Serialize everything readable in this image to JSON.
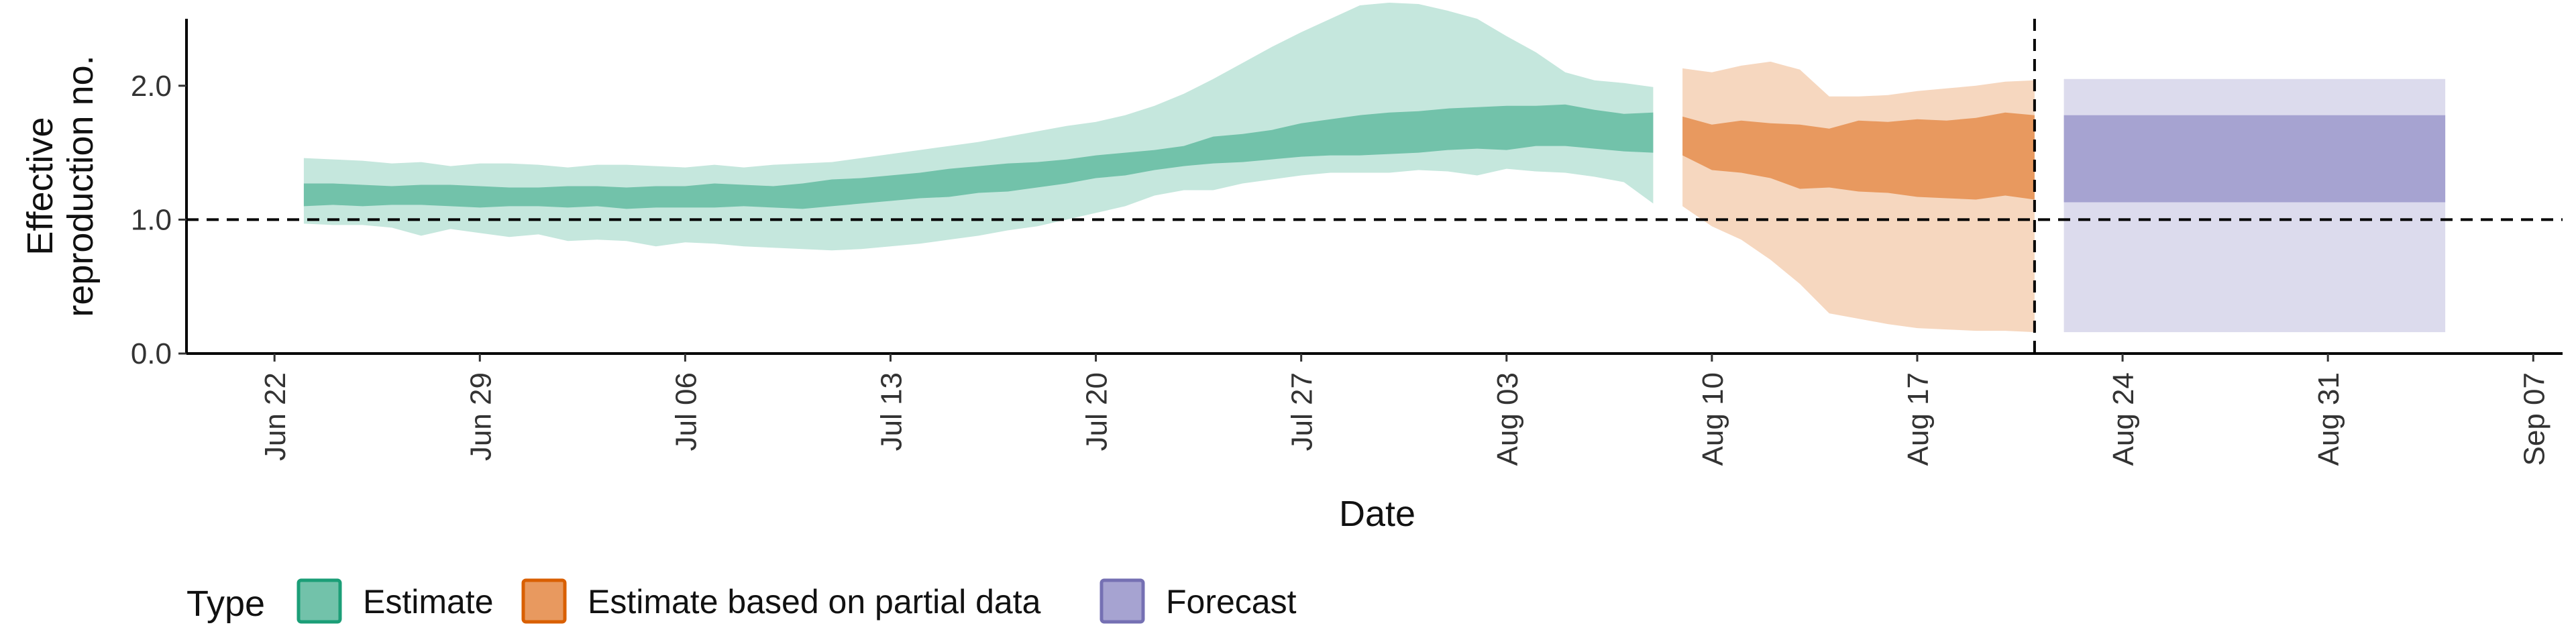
{
  "chart_data": {
    "type": "area",
    "xlabel": "Date",
    "ylabel": "Effective reproduction no.",
    "ylim": [
      0,
      2.5
    ],
    "xlim": [
      "2020-06-19",
      "2020-09-08"
    ],
    "x_ticks": [
      "Jun 22",
      "Jun 29",
      "Jul 06",
      "Jul 13",
      "Jul 20",
      "Jul 27",
      "Aug 03",
      "Aug 10",
      "Aug 17",
      "Aug 24",
      "Aug 31",
      "Sep 07"
    ],
    "x_tick_dates": [
      "2020-06-22",
      "2020-06-29",
      "2020-07-06",
      "2020-07-13",
      "2020-07-20",
      "2020-07-27",
      "2020-08-03",
      "2020-08-10",
      "2020-08-17",
      "2020-08-24",
      "2020-08-31",
      "2020-09-07"
    ],
    "y_ticks": [
      "0.0",
      "1.0",
      "2.0"
    ],
    "y_tick_values": [
      0,
      1,
      2
    ],
    "reference_lines": {
      "horizontal_y": 1.0,
      "vertical_date": "2020-08-21",
      "style": "dashed"
    },
    "grid": false,
    "legend": {
      "title": "Type",
      "position": "bottom",
      "items": [
        {
          "label": "Estimate",
          "fill": "#72c2aa",
          "border": "#1b9e77"
        },
        {
          "label": "Estimate based on partial data",
          "fill": "#e8995f",
          "border": "#d95f02"
        },
        {
          "label": "Forecast",
          "fill": "#a6a3d1",
          "border": "#7570b3"
        }
      ]
    },
    "series": [
      {
        "name": "Estimate",
        "color": "#1b9e77",
        "x": [
          "2020-06-23",
          "2020-06-24",
          "2020-06-25",
          "2020-06-26",
          "2020-06-27",
          "2020-06-28",
          "2020-06-29",
          "2020-06-30",
          "2020-07-01",
          "2020-07-02",
          "2020-07-03",
          "2020-07-04",
          "2020-07-05",
          "2020-07-06",
          "2020-07-07",
          "2020-07-08",
          "2020-07-09",
          "2020-07-10",
          "2020-07-11",
          "2020-07-12",
          "2020-07-13",
          "2020-07-14",
          "2020-07-15",
          "2020-07-16",
          "2020-07-17",
          "2020-07-18",
          "2020-07-19",
          "2020-07-20",
          "2020-07-21",
          "2020-07-22",
          "2020-07-23",
          "2020-07-24",
          "2020-07-25",
          "2020-07-26",
          "2020-07-27",
          "2020-07-28",
          "2020-07-29",
          "2020-07-30",
          "2020-07-31",
          "2020-08-01",
          "2020-08-02",
          "2020-08-03",
          "2020-08-04",
          "2020-08-05",
          "2020-08-06",
          "2020-08-07",
          "2020-08-08"
        ],
        "lower_90": [
          0.97,
          0.96,
          0.96,
          0.94,
          0.88,
          0.93,
          0.9,
          0.87,
          0.89,
          0.84,
          0.85,
          0.84,
          0.8,
          0.83,
          0.82,
          0.8,
          0.79,
          0.78,
          0.77,
          0.78,
          0.8,
          0.82,
          0.85,
          0.88,
          0.92,
          0.95,
          1.0,
          1.05,
          1.1,
          1.18,
          1.22,
          1.22,
          1.27,
          1.3,
          1.33,
          1.35,
          1.35,
          1.35,
          1.37,
          1.36,
          1.33,
          1.38,
          1.36,
          1.35,
          1.32,
          1.28,
          1.12
        ],
        "lower_50": [
          1.1,
          1.11,
          1.1,
          1.11,
          1.11,
          1.1,
          1.09,
          1.1,
          1.1,
          1.09,
          1.1,
          1.08,
          1.09,
          1.09,
          1.09,
          1.1,
          1.09,
          1.08,
          1.1,
          1.12,
          1.14,
          1.16,
          1.17,
          1.2,
          1.21,
          1.24,
          1.27,
          1.31,
          1.33,
          1.37,
          1.4,
          1.42,
          1.43,
          1.45,
          1.47,
          1.48,
          1.48,
          1.49,
          1.5,
          1.52,
          1.53,
          1.52,
          1.55,
          1.55,
          1.53,
          1.51,
          1.5
        ],
        "upper_50": [
          1.27,
          1.27,
          1.26,
          1.25,
          1.26,
          1.26,
          1.25,
          1.24,
          1.24,
          1.25,
          1.25,
          1.24,
          1.25,
          1.25,
          1.27,
          1.26,
          1.25,
          1.27,
          1.3,
          1.31,
          1.33,
          1.35,
          1.38,
          1.4,
          1.42,
          1.43,
          1.45,
          1.48,
          1.5,
          1.52,
          1.55,
          1.62,
          1.64,
          1.67,
          1.72,
          1.75,
          1.78,
          1.8,
          1.81,
          1.83,
          1.84,
          1.85,
          1.85,
          1.86,
          1.82,
          1.79,
          1.8
        ],
        "upper_90": [
          1.46,
          1.45,
          1.44,
          1.42,
          1.43,
          1.4,
          1.42,
          1.42,
          1.41,
          1.39,
          1.41,
          1.41,
          1.4,
          1.39,
          1.41,
          1.39,
          1.41,
          1.42,
          1.43,
          1.46,
          1.49,
          1.52,
          1.55,
          1.58,
          1.62,
          1.66,
          1.7,
          1.73,
          1.78,
          1.85,
          1.94,
          2.05,
          2.17,
          2.29,
          2.4,
          2.5,
          2.6,
          2.62,
          2.61,
          2.56,
          2.5,
          2.37,
          2.25,
          2.1,
          2.04,
          2.02,
          1.99
        ]
      },
      {
        "name": "Estimate based on partial data",
        "color": "#d95f02",
        "x": [
          "2020-08-09",
          "2020-08-10",
          "2020-08-11",
          "2020-08-12",
          "2020-08-13",
          "2020-08-14",
          "2020-08-15",
          "2020-08-16",
          "2020-08-17",
          "2020-08-18",
          "2020-08-19",
          "2020-08-20",
          "2020-08-21"
        ],
        "lower_90": [
          1.1,
          0.95,
          0.85,
          0.7,
          0.52,
          0.3,
          0.26,
          0.22,
          0.19,
          0.18,
          0.17,
          0.17,
          0.16
        ],
        "lower_50": [
          1.48,
          1.37,
          1.35,
          1.31,
          1.23,
          1.24,
          1.21,
          1.2,
          1.17,
          1.16,
          1.15,
          1.18,
          1.15
        ],
        "upper_50": [
          1.77,
          1.71,
          1.74,
          1.72,
          1.71,
          1.68,
          1.74,
          1.73,
          1.75,
          1.74,
          1.76,
          1.8,
          1.78
        ],
        "upper_90": [
          2.13,
          2.1,
          2.15,
          2.18,
          2.12,
          1.92,
          1.92,
          1.93,
          1.96,
          1.98,
          2.0,
          2.03,
          2.04
        ]
      },
      {
        "name": "Forecast",
        "color": "#7570b3",
        "x": [
          "2020-08-22",
          "2020-09-04"
        ],
        "lower_90": [
          0.16,
          0.16
        ],
        "lower_50": [
          1.13,
          1.13
        ],
        "upper_50": [
          1.78,
          1.78
        ],
        "upper_90": [
          2.05,
          2.05
        ]
      }
    ]
  }
}
